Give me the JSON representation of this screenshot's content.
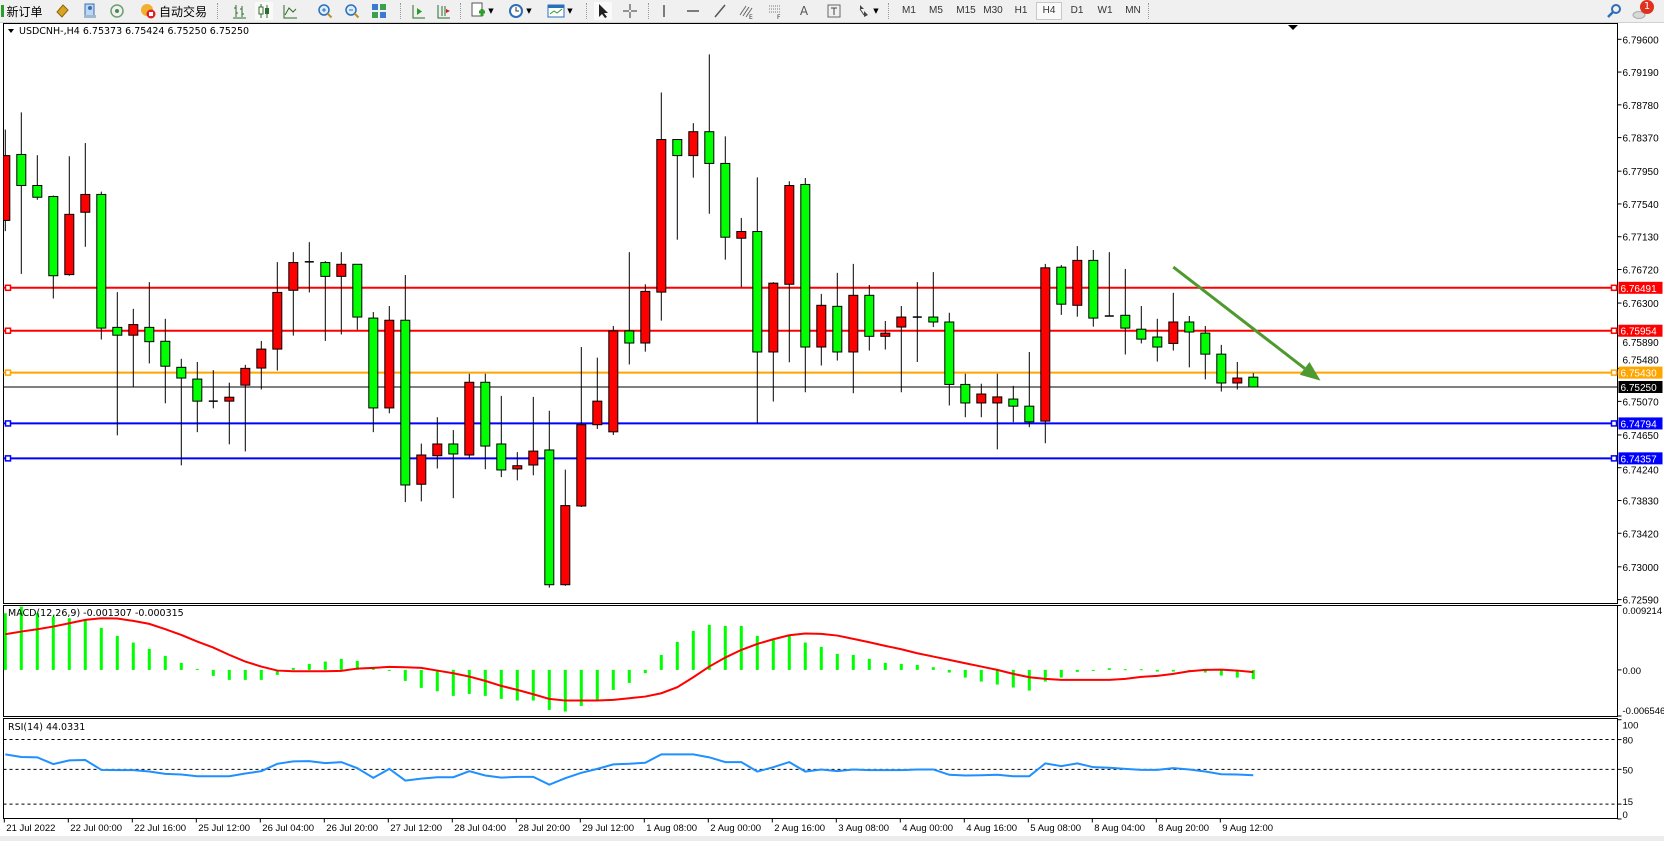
{
  "toolbar": {
    "new_order": "新订单",
    "auto_trading": "自动交易",
    "timeframes": [
      "M1",
      "M5",
      "M15",
      "M30",
      "H1",
      "H4",
      "D1",
      "W1",
      "MN"
    ],
    "active_timeframe": "H4",
    "label_tool": "A",
    "notification_count": "1",
    "icons": [
      "new-order-icon",
      "gold-diamond-icon",
      "market-watch-icon",
      "signals-icon",
      "auto-trading-icon",
      "bar-chart-icon",
      "candlestick-icon",
      "line-chart-icon",
      "zoom-in-icon",
      "zoom-out-icon",
      "tile-windows-icon",
      "auto-scroll-icon",
      "chart-shift-icon",
      "new-chart-icon",
      "periods-clock-icon",
      "templates-icon",
      "cursor-icon",
      "crosshair-icon",
      "vertical-line-icon",
      "horizontal-line-icon",
      "trendline-icon",
      "fibonacci-e-icon",
      "fibonacci-f-icon",
      "text-icon",
      "text-label-icon",
      "arrows-icon",
      "search-icon",
      "notification-icon"
    ]
  },
  "chart_data": [
    {
      "type": "candlestick",
      "title": "USDCNH-,H4  6.75373 6.75424 6.75250 6.75250",
      "up_color": "#ff0000",
      "down_color": "#00ff00",
      "ylim": [
        6.7259,
        6.796
      ],
      "y_ticks": [
        "6.79600",
        "6.79190",
        "6.78780",
        "6.78370",
        "6.77950",
        "6.77540",
        "6.77130",
        "6.76720",
        "6.76300",
        "6.75890",
        "6.75480",
        "6.75070",
        "6.74650",
        "6.74240",
        "6.73830",
        "6.73420",
        "6.73000",
        "6.72590"
      ],
      "x_labels": [
        "21 Jul 2022",
        "22 Jul 00:00",
        "22 Jul 16:00",
        "25 Jul 12:00",
        "26 Jul 04:00",
        "26 Jul 20:00",
        "27 Jul 12:00",
        "28 Jul 04:00",
        "28 Jul 20:00",
        "29 Jul 12:00",
        "1 Aug 08:00",
        "2 Aug 00:00",
        "2 Aug 16:00",
        "3 Aug 08:00",
        "4 Aug 00:00",
        "4 Aug 16:00",
        "5 Aug 08:00",
        "8 Aug 04:00",
        "8 Aug 20:00",
        "9 Aug 12:00"
      ],
      "candles_ohlc": [
        [
          6.77334,
          6.78471,
          6.772,
          6.78145
        ],
        [
          6.78159,
          6.78685,
          6.76665,
          6.77771
        ],
        [
          6.77771,
          6.7815,
          6.77592,
          6.77624
        ],
        [
          6.77633,
          6.77646,
          6.76357,
          6.76642
        ],
        [
          6.76656,
          6.78137,
          6.76642,
          6.7741
        ],
        [
          6.77436,
          6.78302,
          6.77004,
          6.77659
        ],
        [
          6.77659,
          6.77695,
          6.75844,
          6.75987
        ],
        [
          6.75996,
          6.76437,
          6.74644,
          6.75898
        ],
        [
          6.75898,
          6.76228,
          6.75251,
          6.76031
        ],
        [
          6.75996,
          6.76562,
          6.75545,
          6.75817
        ],
        [
          6.75822,
          6.76103,
          6.75046,
          6.7551
        ],
        [
          6.75496,
          6.75603,
          6.7427,
          6.75362
        ],
        [
          6.75349,
          6.75563,
          6.74685,
          6.75073
        ],
        [
          6.75073,
          6.75461,
          6.74983,
          6.75073
        ],
        [
          6.75073,
          6.75304,
          6.74533,
          6.75122
        ],
        [
          6.75273,
          6.75527,
          6.74444,
          6.75483
        ],
        [
          6.75487,
          6.75826,
          6.7522,
          6.75724
        ],
        [
          6.75724,
          6.76812,
          6.75456,
          6.76433
        ],
        [
          6.7646,
          6.76937,
          6.75893,
          6.76807
        ],
        [
          6.76816,
          6.77062,
          6.76433,
          6.76816
        ],
        [
          6.76807,
          6.76825,
          6.75826,
          6.76634
        ],
        [
          6.76634,
          6.76937,
          6.75907,
          6.76785
        ],
        [
          6.76785,
          6.76785,
          6.75965,
          6.76125
        ],
        [
          6.76112,
          6.76188,
          6.74685,
          6.74988
        ],
        [
          6.74988,
          6.76263,
          6.74921,
          6.76085
        ],
        [
          6.76085,
          6.76651,
          6.7381,
          6.74024
        ],
        [
          6.74033,
          6.74542,
          6.73819,
          6.74399
        ],
        [
          6.7439,
          6.74872,
          6.7423,
          6.74537
        ],
        [
          6.74537,
          6.74711,
          6.73859,
          6.74412
        ],
        [
          6.74399,
          6.75416,
          6.74368,
          6.75309
        ],
        [
          6.75309,
          6.75416,
          6.74221,
          6.74511
        ],
        [
          6.74537,
          6.75139,
          6.74123,
          6.74212
        ],
        [
          6.74225,
          6.74435,
          6.74082,
          6.74265
        ],
        [
          6.74274,
          6.75126,
          6.74145,
          6.74448
        ],
        [
          6.74462,
          6.74952,
          6.7274,
          6.72776
        ],
        [
          6.72776,
          6.74216,
          6.72762,
          6.73766
        ],
        [
          6.73761,
          6.7575,
          6.73748,
          6.74778
        ],
        [
          6.74778,
          6.75617,
          6.74725,
          6.75073
        ],
        [
          6.74689,
          6.76014,
          6.74649,
          6.75951
        ],
        [
          6.75951,
          6.76937,
          6.75532,
          6.758
        ],
        [
          6.758,
          6.76535,
          6.75692,
          6.76446
        ],
        [
          6.76437,
          6.78935,
          6.7608,
          6.78346
        ],
        [
          6.78346,
          6.78346,
          6.77093,
          6.78145
        ],
        [
          6.78145,
          6.78551,
          6.77869,
          6.78444
        ],
        [
          6.78444,
          6.79412,
          6.77418,
          6.78047
        ],
        [
          6.78047,
          6.78386,
          6.76843,
          6.77124
        ],
        [
          6.77111,
          6.77365,
          6.765,
          6.77195
        ],
        [
          6.77195,
          6.77873,
          6.74796,
          6.75688
        ],
        [
          6.75688,
          6.76562,
          6.75068,
          6.76549
        ],
        [
          6.76535,
          6.77824,
          6.75559,
          6.77771
        ],
        [
          6.77784,
          6.77864,
          6.75184,
          6.7575
        ],
        [
          6.7575,
          6.76415,
          6.75519,
          6.76272
        ],
        [
          6.76259,
          6.76678,
          6.75581,
          6.75688
        ],
        [
          6.75688,
          6.7679,
          6.75171,
          6.76397
        ],
        [
          6.76397,
          6.76526,
          6.75706,
          6.75884
        ],
        [
          6.75884,
          6.76076,
          6.75719,
          6.75924
        ],
        [
          6.76,
          6.76263,
          6.75184,
          6.76125
        ],
        [
          6.76125,
          6.76562,
          6.75563,
          6.76125
        ],
        [
          6.76125,
          6.76687,
          6.76,
          6.76063
        ],
        [
          6.76063,
          6.76179,
          6.75019,
          6.75282
        ],
        [
          6.75282,
          6.75416,
          6.74872,
          6.7505
        ],
        [
          6.7505,
          6.75291,
          6.74872,
          6.75162
        ],
        [
          6.7505,
          6.75416,
          6.7447,
          6.75126
        ],
        [
          6.75099,
          6.75264,
          6.74809,
          6.7501
        ],
        [
          6.7501,
          6.75688,
          6.74747,
          6.74814
        ],
        [
          6.74823,
          6.7679,
          6.74546,
          6.76741
        ],
        [
          6.76749,
          6.76776,
          6.76152,
          6.76286
        ],
        [
          6.76272,
          6.77013,
          6.7613,
          6.76834
        ],
        [
          6.76834,
          6.76964,
          6.76005,
          6.76112
        ],
        [
          6.76138,
          6.76937,
          6.76138,
          6.76138
        ],
        [
          6.76147,
          6.76727,
          6.75657,
          6.75987
        ],
        [
          6.75973,
          6.76263,
          6.75795,
          6.75849
        ],
        [
          6.75875,
          6.76103,
          6.75568,
          6.7575
        ],
        [
          6.75795,
          6.76428,
          6.75706,
          6.76063
        ],
        [
          6.76063,
          6.76138,
          6.75496,
          6.75938
        ],
        [
          6.75924,
          6.76014,
          6.75345,
          6.75661
        ],
        [
          6.75661,
          6.75777,
          6.75193,
          6.753
        ],
        [
          6.753,
          6.75563,
          6.7522,
          6.75362
        ],
        [
          6.75373,
          6.75424,
          6.7525,
          6.7525
        ]
      ],
      "levels": [
        {
          "price": 6.76491,
          "label": "6.76491",
          "color": "#ff0000"
        },
        {
          "price": 6.75954,
          "label": "6.75954",
          "color": "#ff0000"
        },
        {
          "price": 6.7543,
          "label": "6.75430",
          "color": "#ffa500"
        },
        {
          "price": 6.74794,
          "label": "6.74794",
          "color": "#0000ff"
        },
        {
          "price": 6.74357,
          "label": "6.74357",
          "color": "#0000ff"
        }
      ],
      "current_price": {
        "price": 6.7525,
        "label": "6.75250",
        "color": "#000000"
      },
      "annotations": [
        {
          "type": "arrow",
          "color": "#4f9a2e",
          "from": {
            "bar": 74,
            "price": 6.7675
          },
          "to": {
            "bar": 83.2,
            "price": 6.7533
          }
        }
      ]
    },
    {
      "type": "bar+line",
      "title": "MACD(12,26,9) -0.001307 -0.000315",
      "ylim": [
        -0.006546,
        0.009214
      ],
      "y_ticks": [
        "0.009214",
        "0.00",
        "-0.006546"
      ],
      "series": [
        {
          "kind": "histogram",
          "color": "#00ff00",
          "values": [
            0.008046,
            0.008993,
            0.008046,
            0.007573,
            0.007336,
            0.0071,
            0.005964,
            0.004828,
            0.003881,
            0.002982,
            0.001988,
            0.000994,
            0.000142,
            -0.000852,
            -0.00142,
            -0.00142,
            -0.00142,
            -0.00071,
            0.000284,
            0.000852,
            0.001183,
            0.001562,
            0.001278,
            0.000237,
            0.0,
            -0.001562,
            -0.002556,
            -0.003029,
            -0.003692,
            -0.003408,
            -0.003692,
            -0.004118,
            -0.004354,
            -0.004354,
            -0.00568,
            -0.005916,
            -0.005112,
            -0.004354,
            -0.00284,
            -0.001846,
            -0.000473,
            0.00213,
            0.003976,
            0.005538,
            0.00639,
            0.006248,
            0.006248,
            0.004828,
            0.004354,
            0.00497,
            0.003881,
            0.003266,
            0.002272,
            0.00213,
            0.001562,
            0.000994,
            0.000852,
            0.00071,
            0.000379,
            -0.000379,
            -0.001089,
            -0.001657,
            -0.002083,
            -0.002508,
            -0.002934,
            -0.001657,
            -0.001089,
            -0.000284,
            -0.000142,
            0.000237,
            9.5e-05,
            9.5e-05,
            -0.000237,
            -0.000237,
            0.0,
            -0.000379,
            -0.000805,
            -0.001089,
            -0.001307
          ]
        },
        {
          "kind": "signal",
          "color": "#ff0000",
          "values": [
            0.005064,
            0.005443,
            0.005774,
            0.006153,
            0.006626,
            0.0071,
            0.007336,
            0.007289,
            0.006958,
            0.006532,
            0.005774,
            0.00497,
            0.004023,
            0.003171,
            0.00213,
            0.001183,
            0.000473,
            -9.5e-05,
            -0.000189,
            -0.000189,
            -0.000189,
            -0.000142,
            0.000189,
            0.000284,
            0.000426,
            0.000379,
            0.000284,
            -9.5e-05,
            -0.000473,
            -0.000947,
            -0.001562,
            -0.002272,
            -0.00284,
            -0.003455,
            -0.004118,
            -0.004354,
            -0.004354,
            -0.004354,
            -0.00426,
            -0.004023,
            -0.003786,
            -0.003313,
            -0.002461,
            -0.001041,
            0.000473,
            0.001751,
            0.00284,
            0.003692,
            0.004354,
            0.004922,
            0.005159,
            0.005112,
            0.004875,
            0.004402,
            0.003928,
            0.003408,
            0.002934,
            0.002367,
            0.001893,
            0.00142,
            0.000947,
            0.000473,
            0.0,
            -0.000568,
            -0.001041,
            -0.001278,
            -0.00142,
            -0.00142,
            -0.00142,
            -0.00142,
            -0.001278,
            -0.000994,
            -0.000852,
            -0.000568,
            -0.000189,
            0.0,
            4.7e-05,
            -9.5e-05,
            -0.000315
          ]
        }
      ]
    },
    {
      "type": "line",
      "title": "RSI(14) 44.0331",
      "ylim": [
        0,
        100
      ],
      "y_ticks": [
        "100",
        "80",
        "50",
        "15",
        "0"
      ],
      "levels": [
        80,
        50,
        15
      ],
      "series": [
        {
          "color": "#1e90ff",
          "values": [
            65.1,
            62.4,
            62.1,
            55.3,
            59.0,
            59.4,
            49.5,
            49.2,
            49.2,
            47.8,
            45.5,
            44.8,
            43.1,
            43.1,
            43.1,
            45.8,
            48.2,
            55.6,
            58.0,
            58.3,
            56.3,
            57.3,
            51.2,
            41.4,
            50.5,
            38.7,
            40.7,
            42.1,
            42.1,
            48.2,
            43.8,
            41.7,
            42.4,
            42.4,
            34.6,
            41.1,
            46.5,
            50.5,
            55.0,
            55.6,
            56.6,
            65.1,
            65.1,
            65.1,
            62.1,
            57.3,
            57.3,
            47.8,
            52.2,
            57.3,
            47.8,
            49.9,
            48.2,
            49.9,
            49.2,
            49.2,
            49.2,
            49.9,
            49.9,
            44.5,
            43.8,
            44.1,
            44.5,
            43.1,
            43.1,
            56.0,
            53.3,
            56.0,
            52.2,
            51.6,
            50.5,
            49.5,
            49.5,
            51.2,
            49.9,
            47.8,
            45.1,
            44.8,
            44.0331
          ]
        }
      ]
    }
  ]
}
